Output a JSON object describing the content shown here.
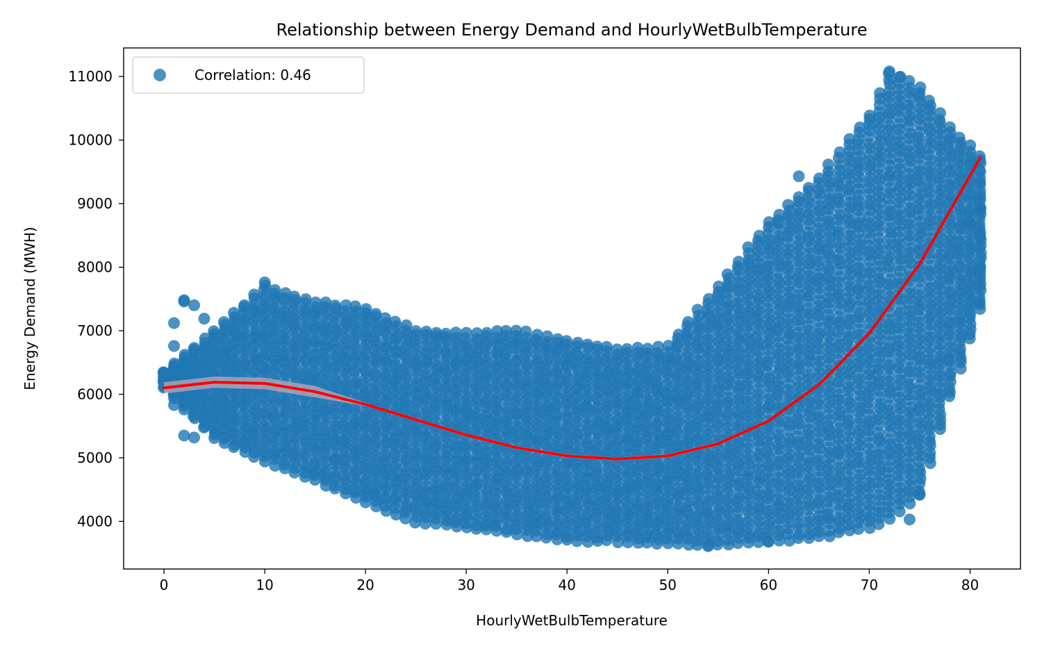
{
  "chart_data": {
    "type": "scatter",
    "title": "Relationship between Energy Demand and HourlyWetBulbTemperature",
    "xlabel": "HourlyWetBulbTemperature",
    "ylabel": "Energy Demand (MWH)",
    "xlim": [
      -4,
      85
    ],
    "ylim": [
      3250,
      11450
    ],
    "xticks": [
      0,
      10,
      20,
      30,
      40,
      50,
      60,
      70,
      80
    ],
    "yticks": [
      4000,
      5000,
      6000,
      7000,
      8000,
      9000,
      10000,
      11000
    ],
    "grid": false,
    "legend": {
      "placement": "top-left",
      "entries": [
        "Correlation: 0.46"
      ]
    },
    "colors": {
      "points": "#1f77b4",
      "fit_line": "#ff0000",
      "confidence_band": "#f4b8b8"
    },
    "series": [
      {
        "name": "Correlation: 0.46",
        "kind": "scatter",
        "bands": [
          {
            "x": 0,
            "low": 6100,
            "high": 6350
          },
          {
            "x": 5,
            "low": 5300,
            "high": 7000
          },
          {
            "x": 10,
            "low": 4950,
            "high": 7700
          },
          {
            "x": 15,
            "low": 4650,
            "high": 7450
          },
          {
            "x": 20,
            "low": 4300,
            "high": 7350
          },
          {
            "x": 25,
            "low": 4000,
            "high": 7000
          },
          {
            "x": 30,
            "low": 3900,
            "high": 6950
          },
          {
            "x": 35,
            "low": 3800,
            "high": 7000
          },
          {
            "x": 40,
            "low": 3700,
            "high": 6850
          },
          {
            "x": 45,
            "low": 3680,
            "high": 6700
          },
          {
            "x": 50,
            "low": 3650,
            "high": 6750
          },
          {
            "x": 55,
            "low": 3620,
            "high": 7700
          },
          {
            "x": 60,
            "low": 3680,
            "high": 8700
          },
          {
            "x": 65,
            "low": 3750,
            "high": 9400
          },
          {
            "x": 70,
            "low": 3900,
            "high": 10400
          },
          {
            "x": 72,
            "low": 4050,
            "high": 11050
          },
          {
            "x": 75,
            "low": 4400,
            "high": 10850
          },
          {
            "x": 78,
            "low": 5950,
            "high": 10200
          },
          {
            "x": 81,
            "low": 7350,
            "high": 9750
          }
        ],
        "outliers": [
          {
            "x": 0,
            "y": 6330
          },
          {
            "x": 1,
            "y": 7120
          },
          {
            "x": 1,
            "y": 6760
          },
          {
            "x": 1,
            "y": 5830
          },
          {
            "x": 2,
            "y": 7480
          },
          {
            "x": 2,
            "y": 7460
          },
          {
            "x": 2,
            "y": 5350
          },
          {
            "x": 3,
            "y": 7400
          },
          {
            "x": 3,
            "y": 5320
          },
          {
            "x": 4,
            "y": 7190
          },
          {
            "x": 10,
            "y": 7760
          },
          {
            "x": 63,
            "y": 9430
          },
          {
            "x": 72,
            "y": 11080
          },
          {
            "x": 73,
            "y": 10990
          },
          {
            "x": 75,
            "y": 4430
          },
          {
            "x": 81,
            "y": 8930
          },
          {
            "x": 81,
            "y": 8480
          },
          {
            "x": 81,
            "y": 8010
          },
          {
            "x": 74,
            "y": 4030
          },
          {
            "x": 60,
            "y": 3680
          },
          {
            "x": 54,
            "y": 3610
          }
        ]
      },
      {
        "name": "",
        "kind": "fit-line",
        "x": [
          0,
          5,
          10,
          15,
          20,
          25,
          30,
          35,
          40,
          45,
          50,
          55,
          60,
          65,
          70,
          75,
          81
        ],
        "y": [
          6100,
          6190,
          6170,
          6040,
          5840,
          5600,
          5360,
          5160,
          5030,
          4980,
          5030,
          5220,
          5580,
          6150,
          6960,
          8050,
          9720
        ]
      }
    ]
  }
}
